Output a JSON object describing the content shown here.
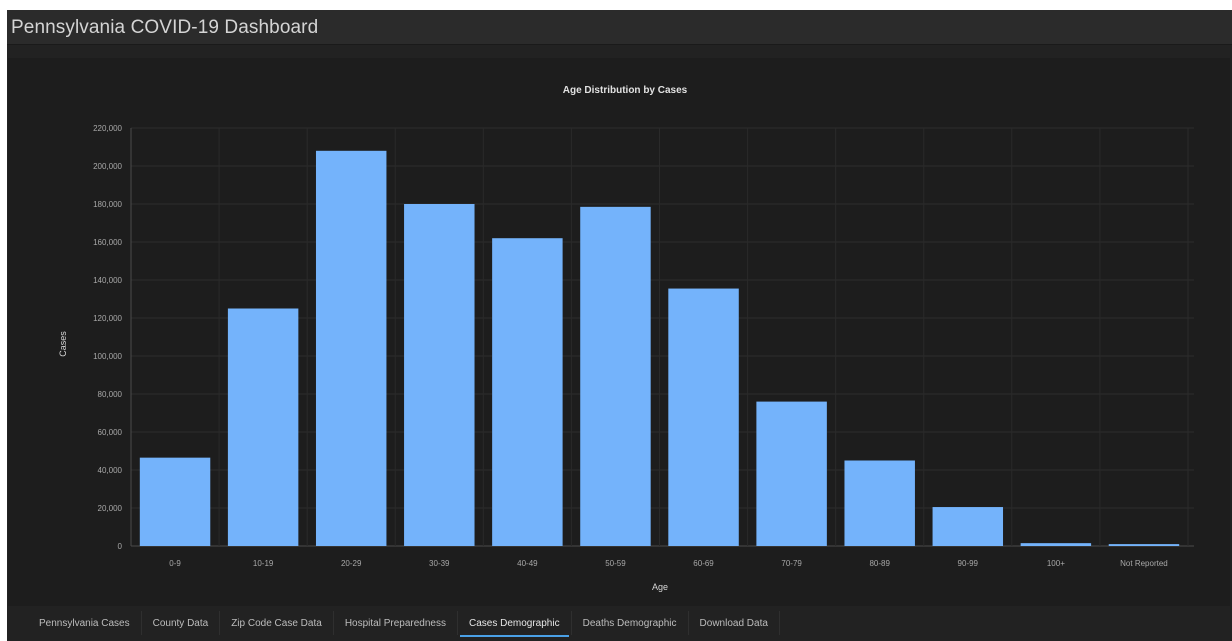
{
  "app": {
    "title": "Pennsylvania COVID-19 Dashboard"
  },
  "colors": {
    "bar": "#74b3fb",
    "background": "#1d1d1d",
    "header": "#2b2b2b",
    "tab_active_underline": "#4aa0e6"
  },
  "tabs": [
    {
      "label": "Pennsylvania Cases",
      "active": false
    },
    {
      "label": "County Data",
      "active": false
    },
    {
      "label": "Zip Code Case Data",
      "active": false
    },
    {
      "label": "Hospital Preparedness",
      "active": false
    },
    {
      "label": "Cases Demographic",
      "active": true
    },
    {
      "label": "Deaths Demographic",
      "active": false
    },
    {
      "label": "Download Data",
      "active": false
    }
  ],
  "chart_data": {
    "type": "bar",
    "title": "Age Distribution by Cases",
    "xlabel": "Age",
    "ylabel": "Cases",
    "categories": [
      "0-9",
      "10-19",
      "20-29",
      "30-39",
      "40-49",
      "50-59",
      "60-69",
      "70-79",
      "80-89",
      "90-99",
      "100+",
      "Not Reported"
    ],
    "values": [
      46500,
      125000,
      208000,
      180000,
      162000,
      178500,
      135500,
      76000,
      45000,
      20500,
      1500,
      1000
    ],
    "ylim": [
      0,
      220000
    ],
    "yticks": [
      0,
      20000,
      40000,
      60000,
      80000,
      100000,
      120000,
      140000,
      160000,
      180000,
      200000,
      220000
    ],
    "ytick_labels": [
      "0",
      "20,000",
      "40,000",
      "60,000",
      "80,000",
      "100,000",
      "120,000",
      "140,000",
      "160,000",
      "180,000",
      "200,000",
      "220,000"
    ],
    "grid": true,
    "legend": "none"
  }
}
